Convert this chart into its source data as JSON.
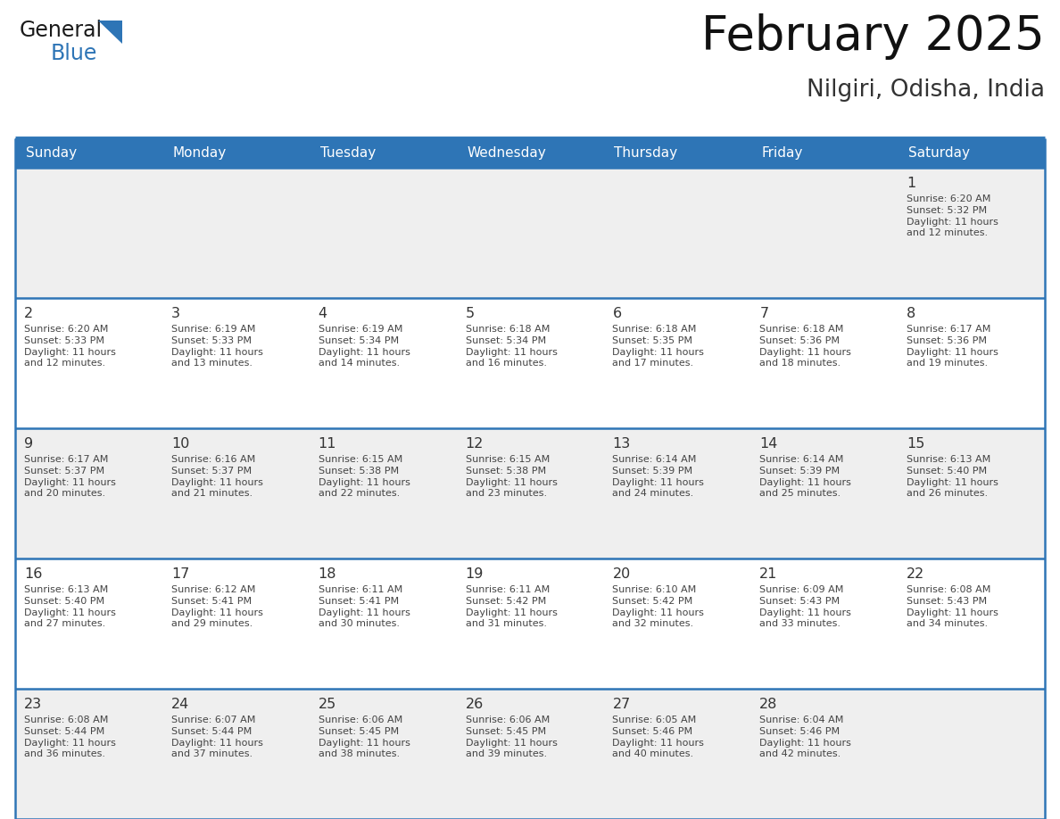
{
  "title": "February 2025",
  "subtitle": "Nilgiri, Odisha, India",
  "header_bg": "#2E75B6",
  "header_text_color": "#FFFFFF",
  "row_bg_odd": "#EFEFEF",
  "row_bg_even": "#FFFFFF",
  "border_color": "#2E75B6",
  "day_num_color": "#333333",
  "info_text_color": "#444444",
  "days_of_week": [
    "Sunday",
    "Monday",
    "Tuesday",
    "Wednesday",
    "Thursday",
    "Friday",
    "Saturday"
  ],
  "calendar_data": [
    [
      null,
      null,
      null,
      null,
      null,
      null,
      {
        "day": 1,
        "sunrise": "6:20 AM",
        "sunset": "5:32 PM",
        "daylight": "11 hours\nand 12 minutes."
      }
    ],
    [
      {
        "day": 2,
        "sunrise": "6:20 AM",
        "sunset": "5:33 PM",
        "daylight": "11 hours\nand 12 minutes."
      },
      {
        "day": 3,
        "sunrise": "6:19 AM",
        "sunset": "5:33 PM",
        "daylight": "11 hours\nand 13 minutes."
      },
      {
        "day": 4,
        "sunrise": "6:19 AM",
        "sunset": "5:34 PM",
        "daylight": "11 hours\nand 14 minutes."
      },
      {
        "day": 5,
        "sunrise": "6:18 AM",
        "sunset": "5:34 PM",
        "daylight": "11 hours\nand 16 minutes."
      },
      {
        "day": 6,
        "sunrise": "6:18 AM",
        "sunset": "5:35 PM",
        "daylight": "11 hours\nand 17 minutes."
      },
      {
        "day": 7,
        "sunrise": "6:18 AM",
        "sunset": "5:36 PM",
        "daylight": "11 hours\nand 18 minutes."
      },
      {
        "day": 8,
        "sunrise": "6:17 AM",
        "sunset": "5:36 PM",
        "daylight": "11 hours\nand 19 minutes."
      }
    ],
    [
      {
        "day": 9,
        "sunrise": "6:17 AM",
        "sunset": "5:37 PM",
        "daylight": "11 hours\nand 20 minutes."
      },
      {
        "day": 10,
        "sunrise": "6:16 AM",
        "sunset": "5:37 PM",
        "daylight": "11 hours\nand 21 minutes."
      },
      {
        "day": 11,
        "sunrise": "6:15 AM",
        "sunset": "5:38 PM",
        "daylight": "11 hours\nand 22 minutes."
      },
      {
        "day": 12,
        "sunrise": "6:15 AM",
        "sunset": "5:38 PM",
        "daylight": "11 hours\nand 23 minutes."
      },
      {
        "day": 13,
        "sunrise": "6:14 AM",
        "sunset": "5:39 PM",
        "daylight": "11 hours\nand 24 minutes."
      },
      {
        "day": 14,
        "sunrise": "6:14 AM",
        "sunset": "5:39 PM",
        "daylight": "11 hours\nand 25 minutes."
      },
      {
        "day": 15,
        "sunrise": "6:13 AM",
        "sunset": "5:40 PM",
        "daylight": "11 hours\nand 26 minutes."
      }
    ],
    [
      {
        "day": 16,
        "sunrise": "6:13 AM",
        "sunset": "5:40 PM",
        "daylight": "11 hours\nand 27 minutes."
      },
      {
        "day": 17,
        "sunrise": "6:12 AM",
        "sunset": "5:41 PM",
        "daylight": "11 hours\nand 29 minutes."
      },
      {
        "day": 18,
        "sunrise": "6:11 AM",
        "sunset": "5:41 PM",
        "daylight": "11 hours\nand 30 minutes."
      },
      {
        "day": 19,
        "sunrise": "6:11 AM",
        "sunset": "5:42 PM",
        "daylight": "11 hours\nand 31 minutes."
      },
      {
        "day": 20,
        "sunrise": "6:10 AM",
        "sunset": "5:42 PM",
        "daylight": "11 hours\nand 32 minutes."
      },
      {
        "day": 21,
        "sunrise": "6:09 AM",
        "sunset": "5:43 PM",
        "daylight": "11 hours\nand 33 minutes."
      },
      {
        "day": 22,
        "sunrise": "6:08 AM",
        "sunset": "5:43 PM",
        "daylight": "11 hours\nand 34 minutes."
      }
    ],
    [
      {
        "day": 23,
        "sunrise": "6:08 AM",
        "sunset": "5:44 PM",
        "daylight": "11 hours\nand 36 minutes."
      },
      {
        "day": 24,
        "sunrise": "6:07 AM",
        "sunset": "5:44 PM",
        "daylight": "11 hours\nand 37 minutes."
      },
      {
        "day": 25,
        "sunrise": "6:06 AM",
        "sunset": "5:45 PM",
        "daylight": "11 hours\nand 38 minutes."
      },
      {
        "day": 26,
        "sunrise": "6:06 AM",
        "sunset": "5:45 PM",
        "daylight": "11 hours\nand 39 minutes."
      },
      {
        "day": 27,
        "sunrise": "6:05 AM",
        "sunset": "5:46 PM",
        "daylight": "11 hours\nand 40 minutes."
      },
      {
        "day": 28,
        "sunrise": "6:04 AM",
        "sunset": "5:46 PM",
        "daylight": "11 hours\nand 42 minutes."
      },
      null
    ]
  ]
}
